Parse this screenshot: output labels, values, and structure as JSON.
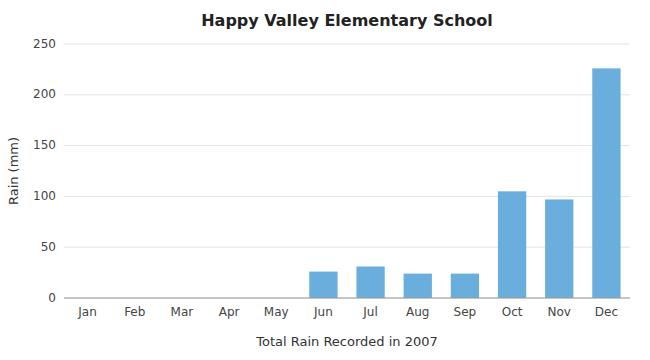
{
  "chart_data": {
    "type": "bar",
    "title": "Happy Valley Elementary School",
    "xlabel": "Total Rain Recorded in 2007",
    "ylabel": "Rain (mm)",
    "categories": [
      "Jan",
      "Feb",
      "Mar",
      "Apr",
      "May",
      "Jun",
      "Jul",
      "Aug",
      "Sep",
      "Oct",
      "Nov",
      "Dec"
    ],
    "values": [
      0,
      0,
      0,
      0,
      0,
      26,
      31,
      24,
      24,
      105,
      97,
      226
    ],
    "color": "#6aaede",
    "ylim": [
      0,
      250
    ],
    "yticks": [
      0,
      50,
      100,
      150,
      200,
      250
    ],
    "grid": true
  }
}
